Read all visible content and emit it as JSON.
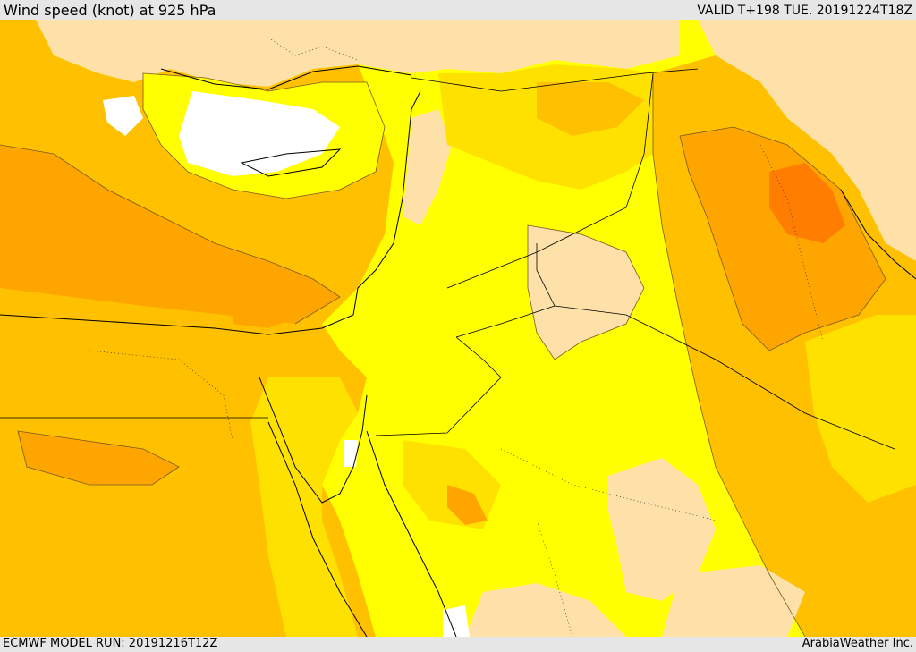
{
  "header": {
    "title": "Wind speed (knot) at 925 hPa",
    "valid_time": "VALID T+198 TUE. 20191224T18Z"
  },
  "footer": {
    "model_run": "ECMWF MODEL RUN: 20191216T12Z",
    "credit": "ArabiaWeather Inc."
  },
  "map": {
    "colors": {
      "land_low": "#fde1a9",
      "yellow": "#ffff00",
      "yellow_orange": "#ffe100",
      "orange_light": "#ffc000",
      "orange": "#ffa500",
      "orange_dark": "#ff8c00",
      "orange_max": "#ff7d00",
      "calm": "#ffffff",
      "contour": "#7a5a20",
      "border": "#000000"
    }
  }
}
